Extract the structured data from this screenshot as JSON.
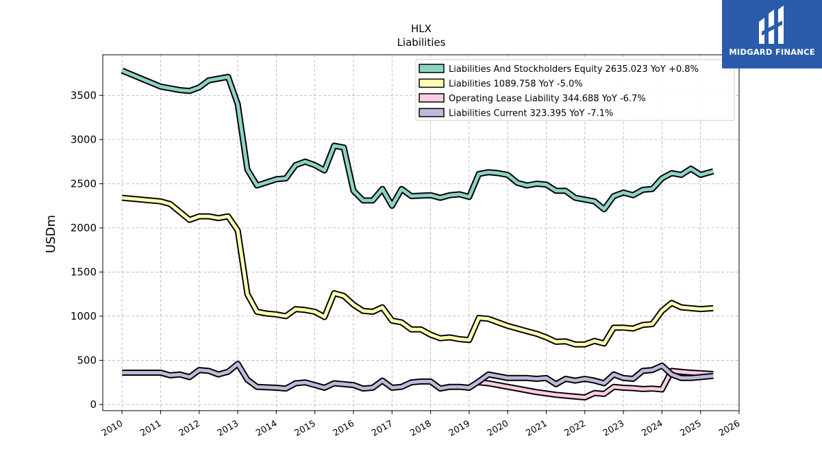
{
  "brand": {
    "name": "MIDGARD FINANCE",
    "logo_icon": "midgard-logo-icon",
    "color": "#2b5cab"
  },
  "chart_data": {
    "type": "line",
    "title": "HLX",
    "subtitle": "Liabilities",
    "ylabel": "USDm",
    "xlabel": "",
    "xlim": [
      2009.5,
      2026.0
    ],
    "ylim": [
      -70,
      3960
    ],
    "yticks": [
      0,
      500,
      1000,
      1500,
      2000,
      2500,
      3000,
      3500
    ],
    "xticks": [
      "2010",
      "2011",
      "2012",
      "2013",
      "2014",
      "2015",
      "2016",
      "2017",
      "2018",
      "2019",
      "2020",
      "2021",
      "2022",
      "2023",
      "2024",
      "2025",
      "2026"
    ],
    "grid": true,
    "legend_position": "top-right",
    "series": [
      {
        "name": "Liabilities And Stockholders Equity",
        "legend": "Liabilities And Stockholders Equity  2635.023 YoY +0.8%",
        "color": "#8dd3c7",
        "points": [
          [
            2010.0,
            3780
          ],
          [
            2011.0,
            3600
          ],
          [
            2011.5,
            3560
          ],
          [
            2011.75,
            3550
          ],
          [
            2012.0,
            3590
          ],
          [
            2012.25,
            3670
          ],
          [
            2012.75,
            3710
          ],
          [
            2013.0,
            3400
          ],
          [
            2013.25,
            2660
          ],
          [
            2013.5,
            2480
          ],
          [
            2014.0,
            2550
          ],
          [
            2014.25,
            2560
          ],
          [
            2014.5,
            2710
          ],
          [
            2014.75,
            2750
          ],
          [
            2015.0,
            2710
          ],
          [
            2015.25,
            2650
          ],
          [
            2015.5,
            2930
          ],
          [
            2015.75,
            2910
          ],
          [
            2016.0,
            2420
          ],
          [
            2016.25,
            2310
          ],
          [
            2016.5,
            2310
          ],
          [
            2016.75,
            2440
          ],
          [
            2017.0,
            2250
          ],
          [
            2017.25,
            2440
          ],
          [
            2017.5,
            2360
          ],
          [
            2018.0,
            2370
          ],
          [
            2018.25,
            2340
          ],
          [
            2018.5,
            2370
          ],
          [
            2018.75,
            2380
          ],
          [
            2019.0,
            2350
          ],
          [
            2019.25,
            2610
          ],
          [
            2019.5,
            2630
          ],
          [
            2019.75,
            2620
          ],
          [
            2020.0,
            2600
          ],
          [
            2020.25,
            2510
          ],
          [
            2020.5,
            2480
          ],
          [
            2020.75,
            2500
          ],
          [
            2021.0,
            2490
          ],
          [
            2021.25,
            2420
          ],
          [
            2021.5,
            2420
          ],
          [
            2021.75,
            2340
          ],
          [
            2022.0,
            2320
          ],
          [
            2022.25,
            2300
          ],
          [
            2022.5,
            2210
          ],
          [
            2022.75,
            2360
          ],
          [
            2023.0,
            2400
          ],
          [
            2023.25,
            2370
          ],
          [
            2023.5,
            2430
          ],
          [
            2023.75,
            2440
          ],
          [
            2024.0,
            2560
          ],
          [
            2024.25,
            2620
          ],
          [
            2024.5,
            2600
          ],
          [
            2024.75,
            2670
          ],
          [
            2025.0,
            2600
          ],
          [
            2025.33,
            2640
          ]
        ]
      },
      {
        "name": "Liabilities",
        "legend": "Liabilities  1089.758 YoY -5.0%",
        "color": "#ffffb3",
        "points": [
          [
            2010.0,
            2340
          ],
          [
            2011.0,
            2300
          ],
          [
            2011.25,
            2270
          ],
          [
            2011.5,
            2180
          ],
          [
            2011.75,
            2090
          ],
          [
            2012.0,
            2130
          ],
          [
            2012.25,
            2130
          ],
          [
            2012.5,
            2110
          ],
          [
            2012.75,
            2130
          ],
          [
            2013.0,
            1970
          ],
          [
            2013.25,
            1250
          ],
          [
            2013.5,
            1050
          ],
          [
            2013.75,
            1030
          ],
          [
            2014.0,
            1020
          ],
          [
            2014.25,
            1000
          ],
          [
            2014.5,
            1080
          ],
          [
            2014.75,
            1070
          ],
          [
            2015.0,
            1050
          ],
          [
            2015.25,
            990
          ],
          [
            2015.5,
            1260
          ],
          [
            2015.75,
            1230
          ],
          [
            2016.0,
            1130
          ],
          [
            2016.25,
            1060
          ],
          [
            2016.5,
            1050
          ],
          [
            2016.75,
            1100
          ],
          [
            2017.0,
            950
          ],
          [
            2017.25,
            930
          ],
          [
            2017.5,
            850
          ],
          [
            2017.75,
            850
          ],
          [
            2018.0,
            790
          ],
          [
            2018.25,
            750
          ],
          [
            2018.5,
            760
          ],
          [
            2018.75,
            740
          ],
          [
            2019.0,
            730
          ],
          [
            2019.25,
            980
          ],
          [
            2019.5,
            970
          ],
          [
            2019.75,
            930
          ],
          [
            2020.0,
            890
          ],
          [
            2020.25,
            860
          ],
          [
            2020.5,
            830
          ],
          [
            2020.75,
            800
          ],
          [
            2021.0,
            760
          ],
          [
            2021.25,
            710
          ],
          [
            2021.5,
            715
          ],
          [
            2021.75,
            680
          ],
          [
            2022.0,
            680
          ],
          [
            2022.25,
            720
          ],
          [
            2022.5,
            690
          ],
          [
            2022.75,
            870
          ],
          [
            2023.0,
            870
          ],
          [
            2023.25,
            860
          ],
          [
            2023.5,
            900
          ],
          [
            2023.75,
            910
          ],
          [
            2024.0,
            1060
          ],
          [
            2024.25,
            1150
          ],
          [
            2024.5,
            1100
          ],
          [
            2024.75,
            1090
          ],
          [
            2025.0,
            1080
          ],
          [
            2025.33,
            1090
          ]
        ]
      },
      {
        "name": "Operating Lease Liability",
        "legend": "Operating Lease Liability  344.688 YoY -6.7%",
        "color": "#fccde5",
        "points": [
          [
            2019.25,
            250
          ],
          [
            2019.5,
            240
          ],
          [
            2019.75,
            220
          ],
          [
            2020.0,
            200
          ],
          [
            2020.25,
            180
          ],
          [
            2020.5,
            160
          ],
          [
            2020.75,
            140
          ],
          [
            2021.0,
            125
          ],
          [
            2021.25,
            110
          ],
          [
            2021.5,
            100
          ],
          [
            2021.75,
            90
          ],
          [
            2022.0,
            80
          ],
          [
            2022.25,
            130
          ],
          [
            2022.5,
            120
          ],
          [
            2022.75,
            200
          ],
          [
            2023.0,
            190
          ],
          [
            2023.25,
            185
          ],
          [
            2023.5,
            175
          ],
          [
            2023.75,
            180
          ],
          [
            2024.0,
            170
          ],
          [
            2024.25,
            380
          ],
          [
            2024.5,
            370
          ],
          [
            2024.75,
            360
          ],
          [
            2025.0,
            355
          ],
          [
            2025.33,
            345
          ]
        ]
      },
      {
        "name": "Liabilities Current",
        "legend": "Liabilities Current  323.395 YoY -7.1%",
        "color": "#bebada",
        "points": [
          [
            2010.0,
            360
          ],
          [
            2011.0,
            360
          ],
          [
            2011.25,
            330
          ],
          [
            2011.5,
            340
          ],
          [
            2011.75,
            310
          ],
          [
            2012.0,
            390
          ],
          [
            2012.25,
            380
          ],
          [
            2012.5,
            340
          ],
          [
            2012.75,
            370
          ],
          [
            2013.0,
            460
          ],
          [
            2013.25,
            280
          ],
          [
            2013.5,
            200
          ],
          [
            2014.0,
            190
          ],
          [
            2014.25,
            180
          ],
          [
            2014.5,
            240
          ],
          [
            2014.75,
            250
          ],
          [
            2015.0,
            220
          ],
          [
            2015.25,
            190
          ],
          [
            2015.5,
            240
          ],
          [
            2015.75,
            230
          ],
          [
            2016.0,
            220
          ],
          [
            2016.25,
            180
          ],
          [
            2016.5,
            190
          ],
          [
            2016.75,
            270
          ],
          [
            2017.0,
            190
          ],
          [
            2017.25,
            200
          ],
          [
            2017.5,
            250
          ],
          [
            2017.75,
            260
          ],
          [
            2018.0,
            260
          ],
          [
            2018.25,
            180
          ],
          [
            2018.5,
            200
          ],
          [
            2018.75,
            200
          ],
          [
            2019.0,
            190
          ],
          [
            2019.25,
            260
          ],
          [
            2019.5,
            340
          ],
          [
            2019.75,
            320
          ],
          [
            2020.0,
            300
          ],
          [
            2020.25,
            300
          ],
          [
            2020.5,
            300
          ],
          [
            2020.75,
            290
          ],
          [
            2021.0,
            300
          ],
          [
            2021.25,
            230
          ],
          [
            2021.5,
            290
          ],
          [
            2021.75,
            270
          ],
          [
            2022.0,
            290
          ],
          [
            2022.25,
            270
          ],
          [
            2022.5,
            240
          ],
          [
            2022.75,
            340
          ],
          [
            2023.0,
            300
          ],
          [
            2023.25,
            290
          ],
          [
            2023.5,
            380
          ],
          [
            2023.75,
            390
          ],
          [
            2024.0,
            440
          ],
          [
            2024.25,
            340
          ],
          [
            2024.5,
            300
          ],
          [
            2024.75,
            300
          ],
          [
            2025.0,
            310
          ],
          [
            2025.33,
            323
          ]
        ]
      }
    ]
  }
}
